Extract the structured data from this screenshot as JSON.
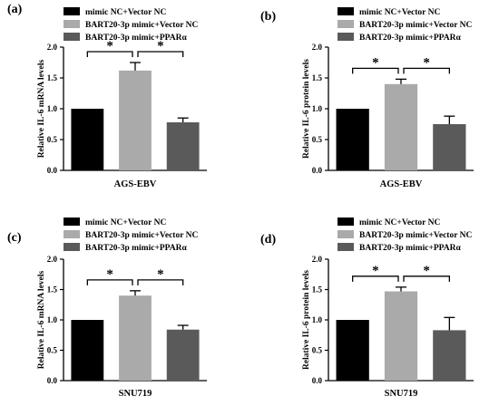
{
  "colors": {
    "mimic_nc_vector_nc": "#000000",
    "bart_mimic_vector_nc": "#aaaaaa",
    "bart_mimic_ppar": "#5a5a5a",
    "axis": "#000000",
    "background": "#ffffff"
  },
  "chart_data": [
    {
      "type": "bar",
      "panel_label": "(a)",
      "categories": [
        "mimic NC+Vector NC",
        "BART20-3p mimic+Vector NC",
        "BART20-3p mimic+PPARα"
      ],
      "values": [
        1.0,
        1.62,
        0.78
      ],
      "error": [
        0,
        0.13,
        0.07
      ],
      "ylabel": "Relative IL-6 mRNA levels",
      "xlabel": "AGS-EBV",
      "ylim": [
        0,
        2.0
      ],
      "yticks": [
        "0.0",
        "0.5",
        "1.0",
        "1.5",
        "2.0"
      ],
      "legend": [
        "mimic NC+Vector NC",
        "BART20-3p mimic+Vector NC",
        "BART20-3p mimic+PPARα"
      ],
      "legend_position": "top",
      "annotations": [
        "*",
        "*"
      ]
    },
    {
      "type": "bar",
      "panel_label": "(b)",
      "categories": [
        "mimic NC+Vector NC",
        "BART20-3p mimic+Vector NC",
        "BART20-3p mimic+PPARα"
      ],
      "values": [
        1.0,
        1.4,
        0.75
      ],
      "error": [
        0,
        0.08,
        0.13
      ],
      "ylabel": "Relative IL-6 protein levels",
      "xlabel": "AGS-EBV",
      "ylim": [
        0,
        2.0
      ],
      "yticks": [
        "0.0",
        "0.5",
        "1.0",
        "1.5",
        "2.0"
      ],
      "legend": [
        "mimic NC+Vector NC",
        "BART20-3p mimic+Vector NC",
        "BART20-3p mimic+PPARα"
      ],
      "legend_position": "top-right",
      "annotations": [
        "*",
        "*"
      ]
    },
    {
      "type": "bar",
      "panel_label": "(c)",
      "categories": [
        "mimic NC+Vector NC",
        "BART20-3p mimic+Vector NC",
        "BART20-3p mimic+PPARα"
      ],
      "values": [
        1.0,
        1.4,
        0.84
      ],
      "error": [
        0,
        0.08,
        0.07
      ],
      "ylabel": "Relative IL-6 mRNA levels",
      "xlabel": "SNU719",
      "ylim": [
        0,
        2.0
      ],
      "yticks": [
        "0.0",
        "0.5",
        "1.0",
        "1.5",
        "2.0"
      ],
      "legend": [
        "mimic NC+Vector NC",
        "BART20-3p mimic+Vector NC",
        "BART20-3p mimic+PPARα"
      ],
      "legend_position": "top",
      "annotations": [
        "*",
        "*"
      ]
    },
    {
      "type": "bar",
      "panel_label": "(d)",
      "categories": [
        "mimic NC+Vector NC",
        "BART20-3p mimic+Vector NC",
        "BART20-3p mimic+PPARα"
      ],
      "values": [
        1.0,
        1.47,
        0.83
      ],
      "error": [
        0,
        0.07,
        0.21
      ],
      "ylabel": "Relative IL-6 protein levels",
      "xlabel": "SNU719",
      "ylim": [
        0,
        2.0
      ],
      "yticks": [
        "0.0",
        "0.5",
        "1.0",
        "1.5",
        "2.0"
      ],
      "legend": [
        "mimic NC+Vector NC",
        "BART20-3p mimic+Vector NC",
        "BART20-3p mimic+PPARα"
      ],
      "legend_position": "top-right",
      "annotations": [
        "*",
        "*"
      ]
    }
  ]
}
